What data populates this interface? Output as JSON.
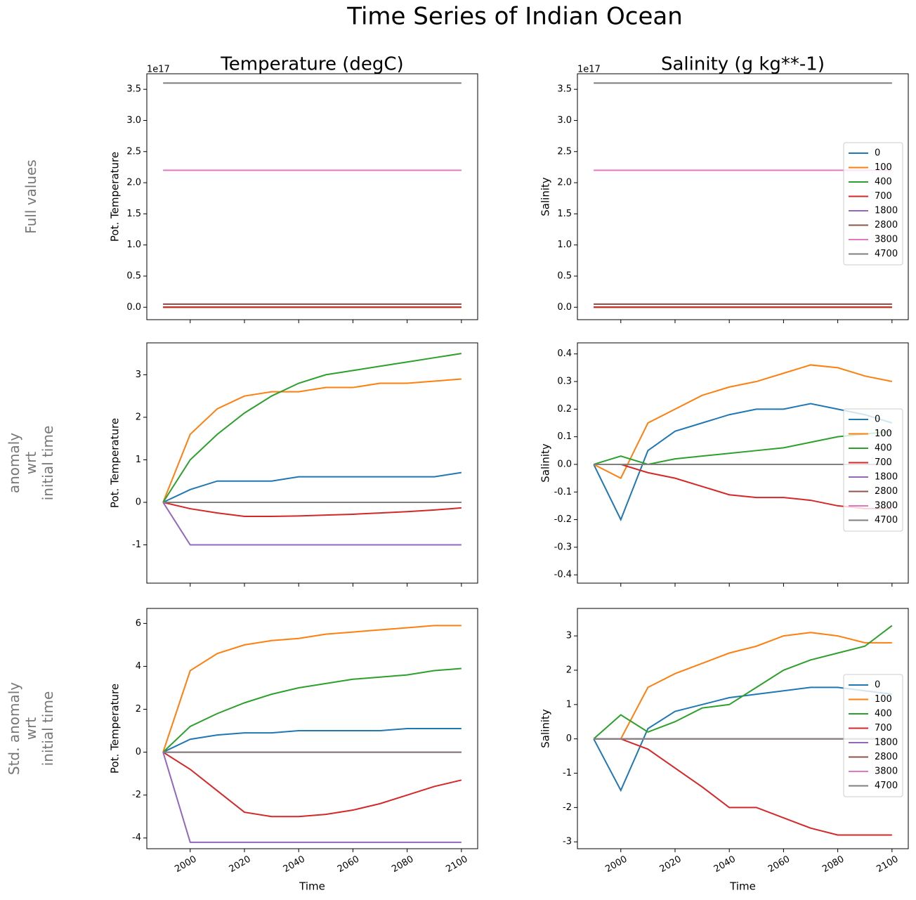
{
  "title": "Time Series of Indian Ocean",
  "row_labels": [
    "Full values",
    "anomaly\nwrt\ninitial time",
    "Std. anomaly\nwrt\ninitial time"
  ],
  "chart_data": [
    {
      "type": "line",
      "title": "Temperature (degC)",
      "ylabel": "Pot. Temperature",
      "y_offset_label": "1e17",
      "x": [
        1990,
        2000,
        2010,
        2020,
        2030,
        2040,
        2050,
        2060,
        2070,
        2080,
        2090,
        2100
      ],
      "xlim": [
        1984,
        2106
      ],
      "xticks": [
        2000,
        2020,
        2040,
        2060,
        2080,
        2100
      ],
      "ylim": [
        -0.2,
        3.75
      ],
      "yticks": [
        {
          "value": 0,
          "label": "0.0"
        },
        0.5,
        {
          "value": 1,
          "label": "1.0"
        },
        1.5,
        {
          "value": 2,
          "label": "2.0"
        },
        2.5,
        {
          "value": 3,
          "label": "3.0"
        },
        3.5
      ],
      "series": [
        {
          "name": "0",
          "color": "#1f77b4",
          "values": [
            0,
            0,
            0,
            0,
            0,
            0,
            0,
            0,
            0,
            0,
            0,
            0
          ]
        },
        {
          "name": "100",
          "color": "#ff7f0e",
          "values": [
            0,
            0,
            0,
            0,
            0,
            0,
            0,
            0,
            0,
            0,
            0,
            0
          ]
        },
        {
          "name": "400",
          "color": "#2ca02c",
          "values": [
            0,
            0,
            0,
            0,
            0,
            0,
            0,
            0,
            0,
            0,
            0,
            0
          ]
        },
        {
          "name": "700",
          "color": "#d62728",
          "values": [
            0,
            0,
            0,
            0,
            0,
            0,
            0,
            0,
            0,
            0,
            0,
            0
          ]
        },
        {
          "name": "1800",
          "color": "#9467bd",
          "values": [
            0.05,
            0.05,
            0.05,
            0.05,
            0.05,
            0.05,
            0.05,
            0.05,
            0.05,
            0.05,
            0.05,
            0.05
          ]
        },
        {
          "name": "2800",
          "color": "#8c564b",
          "values": [
            0.05,
            0.05,
            0.05,
            0.05,
            0.05,
            0.05,
            0.05,
            0.05,
            0.05,
            0.05,
            0.05,
            0.05
          ]
        },
        {
          "name": "3800",
          "color": "#e377c2",
          "values": [
            2.2,
            2.2,
            2.2,
            2.2,
            2.2,
            2.2,
            2.2,
            2.2,
            2.2,
            2.2,
            2.2,
            2.2
          ]
        },
        {
          "name": "4700",
          "color": "#7f7f7f",
          "values": [
            3.6,
            3.6,
            3.6,
            3.6,
            3.6,
            3.6,
            3.6,
            3.6,
            3.6,
            3.6,
            3.6,
            3.6
          ]
        }
      ]
    },
    {
      "type": "line",
      "title": "Salinity (g kg**-1)",
      "ylabel": "Salinity",
      "y_offset_label": "1e17",
      "legend": "center right",
      "x": [
        1990,
        2000,
        2010,
        2020,
        2030,
        2040,
        2050,
        2060,
        2070,
        2080,
        2090,
        2100
      ],
      "xlim": [
        1984,
        2106
      ],
      "xticks": [
        2000,
        2020,
        2040,
        2060,
        2080,
        2100
      ],
      "ylim": [
        -0.2,
        3.75
      ],
      "yticks": [
        {
          "value": 0,
          "label": "0.0"
        },
        0.5,
        {
          "value": 1,
          "label": "1.0"
        },
        1.5,
        {
          "value": 2,
          "label": "2.0"
        },
        2.5,
        {
          "value": 3,
          "label": "3.0"
        },
        3.5
      ],
      "series": [
        {
          "name": "0",
          "color": "#1f77b4",
          "values": [
            0,
            0,
            0,
            0,
            0,
            0,
            0,
            0,
            0,
            0,
            0,
            0
          ]
        },
        {
          "name": "100",
          "color": "#ff7f0e",
          "values": [
            0,
            0,
            0,
            0,
            0,
            0,
            0,
            0,
            0,
            0,
            0,
            0
          ]
        },
        {
          "name": "400",
          "color": "#2ca02c",
          "values": [
            0,
            0,
            0,
            0,
            0,
            0,
            0,
            0,
            0,
            0,
            0,
            0
          ]
        },
        {
          "name": "700",
          "color": "#d62728",
          "values": [
            0,
            0,
            0,
            0,
            0,
            0,
            0,
            0,
            0,
            0,
            0,
            0
          ]
        },
        {
          "name": "1800",
          "color": "#9467bd",
          "values": [
            0.05,
            0.05,
            0.05,
            0.05,
            0.05,
            0.05,
            0.05,
            0.05,
            0.05,
            0.05,
            0.05,
            0.05
          ]
        },
        {
          "name": "2800",
          "color": "#8c564b",
          "values": [
            0.05,
            0.05,
            0.05,
            0.05,
            0.05,
            0.05,
            0.05,
            0.05,
            0.05,
            0.05,
            0.05,
            0.05
          ]
        },
        {
          "name": "3800",
          "color": "#e377c2",
          "values": [
            2.2,
            2.2,
            2.2,
            2.2,
            2.2,
            2.2,
            2.2,
            2.2,
            2.2,
            2.2,
            2.2,
            2.2
          ]
        },
        {
          "name": "4700",
          "color": "#7f7f7f",
          "values": [
            3.6,
            3.6,
            3.6,
            3.6,
            3.6,
            3.6,
            3.6,
            3.6,
            3.6,
            3.6,
            3.6,
            3.6
          ]
        }
      ]
    },
    {
      "type": "line",
      "ylabel": "Pot. Temperature",
      "x": [
        1990,
        2000,
        2010,
        2020,
        2030,
        2040,
        2050,
        2060,
        2070,
        2080,
        2090,
        2100
      ],
      "xlim": [
        1984,
        2106
      ],
      "xticks": [
        2000,
        2020,
        2040,
        2060,
        2080,
        2100
      ],
      "ylim": [
        -1.9,
        3.75
      ],
      "yticks": [
        -1,
        0,
        1,
        2,
        3
      ],
      "series": [
        {
          "name": "0",
          "color": "#1f77b4",
          "values": [
            0,
            0.3,
            0.5,
            0.5,
            0.5,
            0.6,
            0.6,
            0.6,
            0.6,
            0.6,
            0.6,
            0.7
          ]
        },
        {
          "name": "100",
          "color": "#ff7f0e",
          "values": [
            0,
            1.6,
            2.2,
            2.5,
            2.6,
            2.6,
            2.7,
            2.7,
            2.8,
            2.8,
            2.85,
            2.9
          ]
        },
        {
          "name": "400",
          "color": "#2ca02c",
          "values": [
            0,
            1.0,
            1.6,
            2.1,
            2.5,
            2.8,
            3.0,
            3.1,
            3.2,
            3.3,
            3.4,
            3.5
          ]
        },
        {
          "name": "700",
          "color": "#d62728",
          "values": [
            0,
            -0.15,
            -0.25,
            -0.33,
            -0.33,
            -0.32,
            -0.3,
            -0.28,
            -0.25,
            -0.22,
            -0.18,
            -0.13
          ]
        },
        {
          "name": "1800",
          "color": "#9467bd",
          "values": [
            0,
            -1,
            -1,
            -1,
            -1,
            -1,
            -1,
            -1,
            -1,
            -1,
            -1,
            -1
          ]
        },
        {
          "name": "2800",
          "color": "#8c564b",
          "values": [
            0,
            0,
            0,
            0,
            0,
            0,
            0,
            0,
            0,
            0,
            0,
            0
          ]
        },
        {
          "name": "3800",
          "color": "#e377c2",
          "values": [
            0,
            0,
            0,
            0,
            0,
            0,
            0,
            0,
            0,
            0,
            0,
            0
          ]
        },
        {
          "name": "4700",
          "color": "#7f7f7f",
          "values": [
            0,
            0,
            0,
            0,
            0,
            0,
            0,
            0,
            0,
            0,
            0,
            0
          ]
        }
      ]
    },
    {
      "type": "line",
      "ylabel": "Salinity",
      "legend": "center right",
      "x": [
        1990,
        2000,
        2010,
        2020,
        2030,
        2040,
        2050,
        2060,
        2070,
        2080,
        2090,
        2100
      ],
      "xlim": [
        1984,
        2106
      ],
      "xticks": [
        2000,
        2020,
        2040,
        2060,
        2080,
        2100
      ],
      "ylim": [
        -0.43,
        0.44
      ],
      "yticks": [
        -0.4,
        -0.3,
        -0.2,
        -0.1,
        {
          "value": 0,
          "label": "0.0"
        },
        0.1,
        0.2,
        0.3,
        0.4
      ],
      "series": [
        {
          "name": "0",
          "color": "#1f77b4",
          "values": [
            0,
            -0.2,
            0.05,
            0.12,
            0.15,
            0.18,
            0.2,
            0.2,
            0.22,
            0.2,
            0.18,
            0.15
          ]
        },
        {
          "name": "100",
          "color": "#ff7f0e",
          "values": [
            0,
            -0.05,
            0.15,
            0.2,
            0.25,
            0.28,
            0.3,
            0.33,
            0.36,
            0.35,
            0.32,
            0.3
          ]
        },
        {
          "name": "400",
          "color": "#2ca02c",
          "values": [
            0,
            0.03,
            0,
            0.02,
            0.03,
            0.04,
            0.05,
            0.06,
            0.08,
            0.1,
            0.11,
            0.12
          ]
        },
        {
          "name": "700",
          "color": "#d62728",
          "values": [
            0,
            0,
            -0.03,
            -0.05,
            -0.08,
            -0.11,
            -0.12,
            -0.12,
            -0.13,
            -0.15,
            -0.16,
            -0.16
          ]
        },
        {
          "name": "1800",
          "color": "#9467bd",
          "values": [
            0,
            0,
            0,
            0,
            0,
            0,
            0,
            0,
            0,
            0,
            0,
            0
          ]
        },
        {
          "name": "2800",
          "color": "#8c564b",
          "values": [
            0,
            0,
            0,
            0,
            0,
            0,
            0,
            0,
            0,
            0,
            0,
            0
          ]
        },
        {
          "name": "3800",
          "color": "#e377c2",
          "values": [
            0,
            0,
            0,
            0,
            0,
            0,
            0,
            0,
            0,
            0,
            0,
            0
          ]
        },
        {
          "name": "4700",
          "color": "#7f7f7f",
          "values": [
            0,
            0,
            0,
            0,
            0,
            0,
            0,
            0,
            0,
            0,
            0,
            0
          ]
        }
      ]
    },
    {
      "type": "line",
      "ylabel": "Pot. Temperature",
      "xlabel": "Time",
      "x": [
        1990,
        2000,
        2010,
        2020,
        2030,
        2040,
        2050,
        2060,
        2070,
        2080,
        2090,
        2100
      ],
      "xlim": [
        1984,
        2106
      ],
      "xticks": [
        2000,
        2020,
        2040,
        2060,
        2080,
        2100
      ],
      "ylim": [
        -4.5,
        6.7
      ],
      "yticks": [
        -4,
        -2,
        0,
        2,
        4,
        6
      ],
      "series": [
        {
          "name": "0",
          "color": "#1f77b4",
          "values": [
            0,
            0.6,
            0.8,
            0.9,
            0.9,
            1,
            1,
            1,
            1,
            1.1,
            1.1,
            1.1
          ]
        },
        {
          "name": "100",
          "color": "#ff7f0e",
          "values": [
            0,
            3.8,
            4.6,
            5.0,
            5.2,
            5.3,
            5.5,
            5.6,
            5.7,
            5.8,
            5.9,
            5.9
          ]
        },
        {
          "name": "400",
          "color": "#2ca02c",
          "values": [
            0,
            1.2,
            1.8,
            2.3,
            2.7,
            3.0,
            3.2,
            3.4,
            3.5,
            3.6,
            3.8,
            3.9
          ]
        },
        {
          "name": "700",
          "color": "#d62728",
          "values": [
            0,
            -0.8,
            -1.8,
            -2.8,
            -3.0,
            -3.0,
            -2.9,
            -2.7,
            -2.4,
            -2.0,
            -1.6,
            -1.3
          ]
        },
        {
          "name": "1800",
          "color": "#9467bd",
          "values": [
            0,
            -4.2,
            -4.2,
            -4.2,
            -4.2,
            -4.2,
            -4.2,
            -4.2,
            -4.2,
            -4.2,
            -4.2,
            -4.2
          ]
        },
        {
          "name": "2800",
          "color": "#8c564b",
          "values": [
            0,
            0,
            0,
            0,
            0,
            0,
            0,
            0,
            0,
            0,
            0,
            0
          ]
        },
        {
          "name": "3800",
          "color": "#e377c2",
          "values": [
            0,
            0,
            0,
            0,
            0,
            0,
            0,
            0,
            0,
            0,
            0,
            0
          ]
        },
        {
          "name": "4700",
          "color": "#7f7f7f",
          "values": [
            0,
            0,
            0,
            0,
            0,
            0,
            0,
            0,
            0,
            0,
            0,
            0
          ]
        }
      ]
    },
    {
      "type": "line",
      "ylabel": "Salinity",
      "xlabel": "Time",
      "legend": "center right",
      "x": [
        1990,
        2000,
        2010,
        2020,
        2030,
        2040,
        2050,
        2060,
        2070,
        2080,
        2090,
        2100
      ],
      "xlim": [
        1984,
        2106
      ],
      "xticks": [
        2000,
        2020,
        2040,
        2060,
        2080,
        2100
      ],
      "ylim": [
        -3.2,
        3.8
      ],
      "yticks": [
        -3,
        -2,
        -1,
        0,
        1,
        2,
        3
      ],
      "series": [
        {
          "name": "0",
          "color": "#1f77b4",
          "values": [
            0,
            -1.5,
            0.3,
            0.8,
            1,
            1.2,
            1.3,
            1.4,
            1.5,
            1.5,
            1.4,
            1.3
          ]
        },
        {
          "name": "100",
          "color": "#ff7f0e",
          "values": [
            0,
            0,
            1.5,
            1.9,
            2.2,
            2.5,
            2.7,
            3.0,
            3.1,
            3.0,
            2.8,
            2.8
          ]
        },
        {
          "name": "400",
          "color": "#2ca02c",
          "values": [
            0,
            0.7,
            0.2,
            0.5,
            0.9,
            1.0,
            1.5,
            2.0,
            2.3,
            2.5,
            2.7,
            3.3
          ]
        },
        {
          "name": "700",
          "color": "#d62728",
          "values": [
            0,
            0,
            -0.3,
            -0.85,
            -1.4,
            -2.0,
            -2.0,
            -2.3,
            -2.6,
            -2.8,
            -2.8,
            -2.8
          ]
        },
        {
          "name": "1800",
          "color": "#9467bd",
          "values": [
            0,
            0,
            0,
            0,
            0,
            0,
            0,
            0,
            0,
            0,
            0,
            0
          ]
        },
        {
          "name": "2800",
          "color": "#8c564b",
          "values": [
            0,
            0,
            0,
            0,
            0,
            0,
            0,
            0,
            0,
            0,
            0,
            0
          ]
        },
        {
          "name": "3800",
          "color": "#e377c2",
          "values": [
            0,
            0,
            0,
            0,
            0,
            0,
            0,
            0,
            0,
            0,
            0,
            0
          ]
        },
        {
          "name": "4700",
          "color": "#7f7f7f",
          "values": [
            0,
            0,
            0,
            0,
            0,
            0,
            0,
            0,
            0,
            0,
            0,
            0
          ]
        }
      ]
    }
  ]
}
